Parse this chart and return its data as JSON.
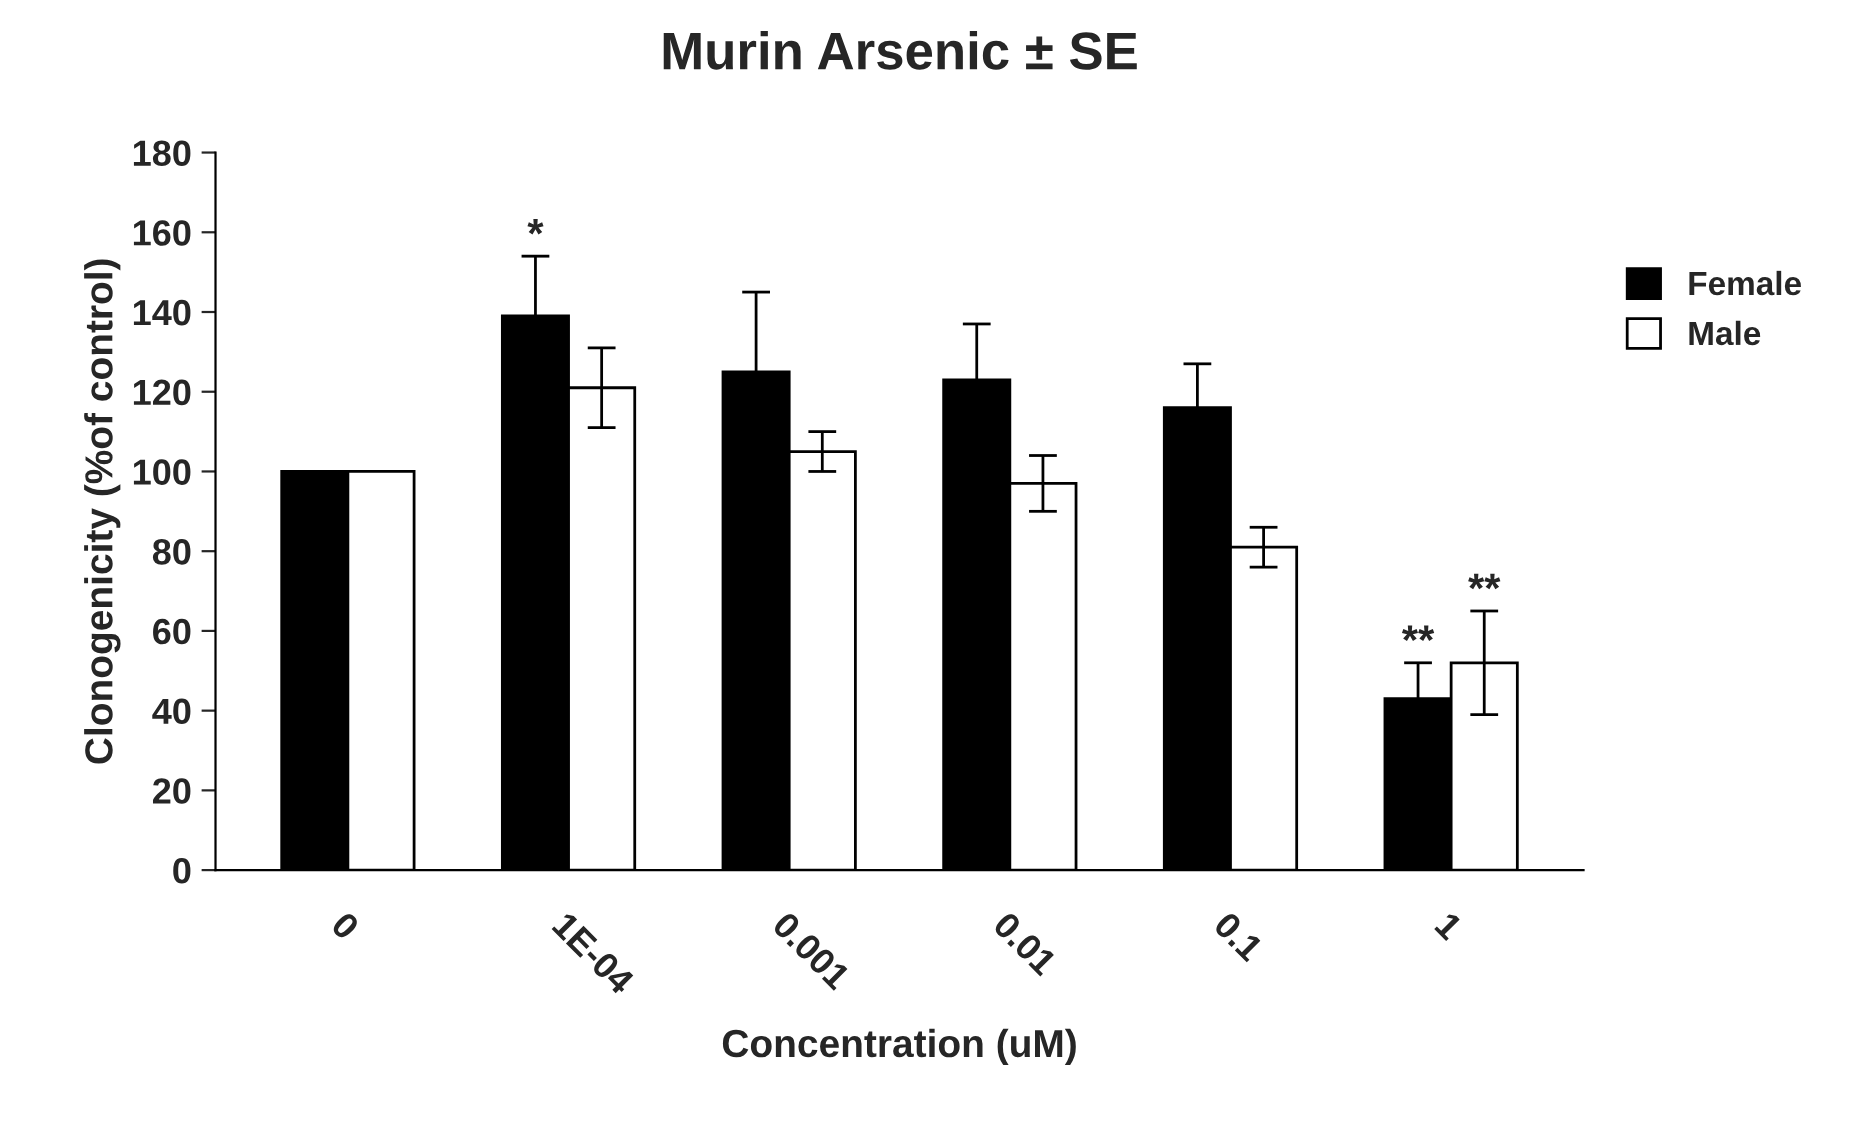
{
  "chart_data": {
    "type": "bar",
    "title": "Murin Arsenic ± SE",
    "xlabel": "Concentration (uM)",
    "ylabel": "Clonogenicity (%of control)",
    "categories": [
      "0",
      "1E-04",
      "0.001",
      "0.01",
      "0.1",
      "1"
    ],
    "series": [
      {
        "name": "Female",
        "color": "#000000",
        "values": [
          100,
          139,
          125,
          123,
          116,
          43
        ],
        "errors": [
          null,
          15,
          20,
          14,
          11,
          9
        ]
      },
      {
        "name": "Male",
        "color": "#ffffff",
        "values": [
          100,
          121,
          105,
          97,
          81,
          52
        ],
        "errors": [
          null,
          10,
          5,
          7,
          5,
          13
        ]
      }
    ],
    "ylim": [
      0,
      180
    ],
    "yticks": [
      0,
      20,
      40,
      60,
      80,
      100,
      120,
      140,
      160,
      180
    ],
    "grid": false,
    "legend": "right",
    "annotations": [
      {
        "text": "*",
        "x": "1E-04",
        "y": 139
      },
      {
        "text": "**",
        "x": "1",
        "y": 43
      },
      {
        "text": "**",
        "x": "1",
        "y": 52
      }
    ]
  }
}
